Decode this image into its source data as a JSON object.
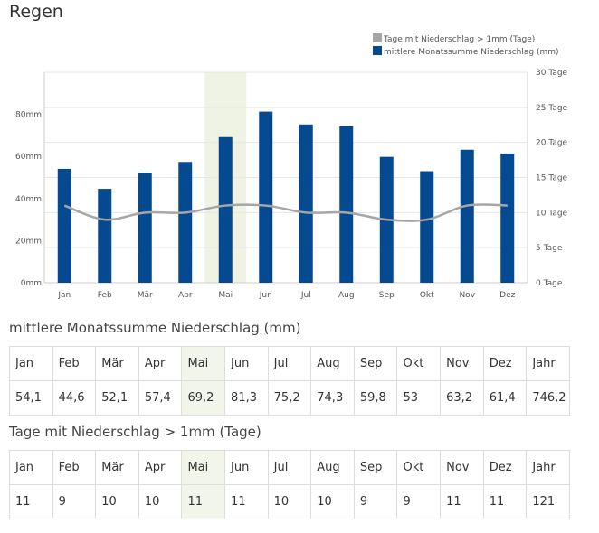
{
  "page": {
    "title": "Regen"
  },
  "chart_data": {
    "type": "bar+line",
    "categories": [
      "Jan",
      "Feb",
      "Mär",
      "Apr",
      "Mai",
      "Jun",
      "Jul",
      "Aug",
      "Sep",
      "Okt",
      "Nov",
      "Dez"
    ],
    "highlight_category": "Mai",
    "left_axis": {
      "ticks": [
        "0mm",
        "20mm",
        "40mm",
        "60mm",
        "80mm"
      ],
      "ylim": [
        0,
        100
      ]
    },
    "right_axis": {
      "ticks": [
        "0 Tage",
        "5 Tage",
        "10 Tage",
        "15 Tage",
        "20 Tage",
        "25 Tage",
        "30 Tage"
      ],
      "ylim": [
        0,
        30
      ]
    },
    "legend": {
      "placement": "top-right"
    },
    "grid": true,
    "series": [
      {
        "name": "Tage mit Niederschlag > 1mm (Tage)",
        "type": "line",
        "axis": "right",
        "color": "#a6a6a6",
        "values": [
          11,
          9,
          10,
          10,
          11,
          11,
          10,
          10,
          9,
          9,
          11,
          11
        ]
      },
      {
        "name": "mittlere Monatssumme Niederschlag (mm)",
        "type": "bar",
        "axis": "left",
        "color": "#054a91",
        "values": [
          54.1,
          44.6,
          52.1,
          57.4,
          69.2,
          81.3,
          75.2,
          74.3,
          59.8,
          53,
          63.2,
          61.4
        ]
      }
    ]
  },
  "tables": [
    {
      "title": "mittlere Monatssumme Niederschlag (mm)",
      "headers": [
        "Jan",
        "Feb",
        "Mär",
        "Apr",
        "Mai",
        "Jun",
        "Jul",
        "Aug",
        "Sep",
        "Okt",
        "Nov",
        "Dez",
        "Jahr"
      ],
      "values": [
        "54,1",
        "44,6",
        "52,1",
        "57,4",
        "69,2",
        "81,3",
        "75,2",
        "74,3",
        "59,8",
        "53",
        "63,2",
        "61,4",
        "746,2"
      ]
    },
    {
      "title": "Tage mit Niederschlag > 1mm (Tage)",
      "headers": [
        "Jan",
        "Feb",
        "Mär",
        "Apr",
        "Mai",
        "Jun",
        "Jul",
        "Aug",
        "Sep",
        "Okt",
        "Nov",
        "Dez",
        "Jahr"
      ],
      "values": [
        "11",
        "9",
        "10",
        "10",
        "11",
        "11",
        "10",
        "10",
        "9",
        "9",
        "11",
        "11",
        "121"
      ]
    }
  ]
}
